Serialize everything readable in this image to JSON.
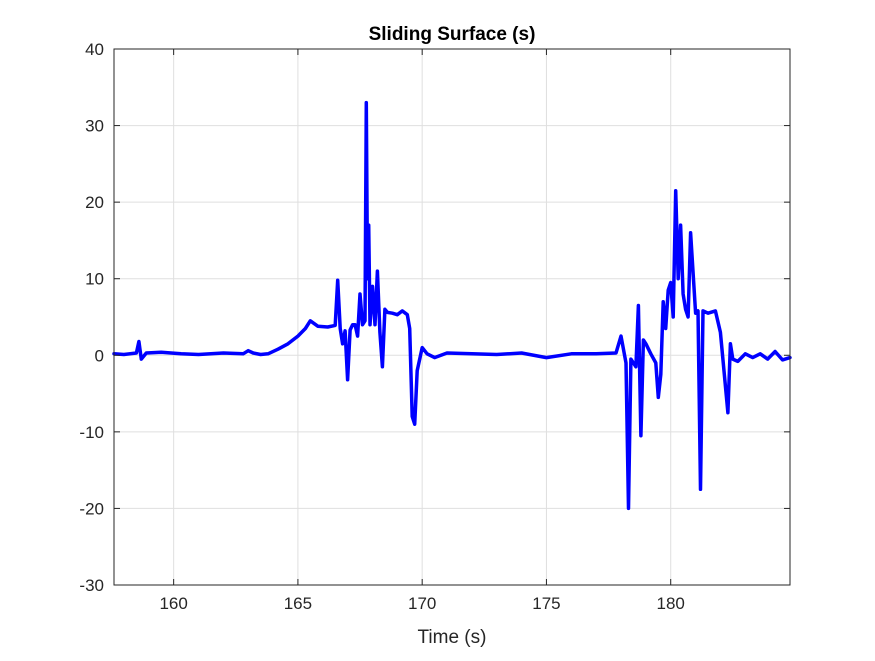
{
  "chart_data": {
    "type": "line",
    "title": "Sliding Surface (s)",
    "xlabel": "Time (s)",
    "ylabel": "",
    "xlim": [
      157.6,
      184.8
    ],
    "ylim": [
      -30,
      40
    ],
    "grid": true,
    "xticks": [
      160,
      165,
      170,
      175,
      180
    ],
    "yticks": [
      -30,
      -20,
      -10,
      0,
      10,
      20,
      30,
      40
    ],
    "colors": {
      "series": "#0000ff",
      "axis": "#262626",
      "grid": "#dfdfdf"
    },
    "series": [
      {
        "name": "",
        "x": [
          157.6,
          158.0,
          158.5,
          158.6,
          158.7,
          158.9,
          159.5,
          160.3,
          161.0,
          162.0,
          162.8,
          163.0,
          163.2,
          163.5,
          163.8,
          164.2,
          164.6,
          165.0,
          165.3,
          165.5,
          165.8,
          166.2,
          166.5,
          166.6,
          166.7,
          166.8,
          166.9,
          167.0,
          167.1,
          167.2,
          167.3,
          167.4,
          167.5,
          167.6,
          167.7,
          167.75,
          167.8,
          167.85,
          167.9,
          168.0,
          168.1,
          168.2,
          168.3,
          168.4,
          168.5,
          168.6,
          168.8,
          169.0,
          169.2,
          169.4,
          169.5,
          169.6,
          169.7,
          169.8,
          169.9,
          170.0,
          170.2,
          170.5,
          171.0,
          172.0,
          173.0,
          174.0,
          175.0,
          176.0,
          177.0,
          177.8,
          178.0,
          178.2,
          178.3,
          178.4,
          178.6,
          178.7,
          178.8,
          178.9,
          179.0,
          179.2,
          179.4,
          179.5,
          179.6,
          179.7,
          179.8,
          179.9,
          180.0,
          180.1,
          180.2,
          180.3,
          180.4,
          180.5,
          180.6,
          180.7,
          180.8,
          181.0,
          181.1,
          181.2,
          181.3,
          181.5,
          181.8,
          182.0,
          182.2,
          182.3,
          182.4,
          182.5,
          182.7,
          183.0,
          183.3,
          183.6,
          183.9,
          184.2,
          184.5,
          184.8
        ],
        "y": [
          0.2,
          0.1,
          0.3,
          1.8,
          -0.5,
          0.3,
          0.4,
          0.2,
          0.1,
          0.3,
          0.2,
          0.6,
          0.3,
          0.1,
          0.2,
          0.8,
          1.5,
          2.5,
          3.5,
          4.5,
          3.8,
          3.7,
          3.9,
          9.8,
          3.5,
          1.5,
          3.2,
          -3.2,
          3.3,
          4.0,
          4.0,
          2.5,
          8.0,
          4.0,
          4.5,
          33.0,
          10.0,
          17.0,
          4.0,
          9.0,
          4.0,
          11.0,
          3.0,
          -1.5,
          6.0,
          5.6,
          5.5,
          5.3,
          5.8,
          5.3,
          3.5,
          -8.0,
          -9.0,
          -2.0,
          -0.5,
          1.0,
          0.2,
          -0.3,
          0.3,
          0.2,
          0.1,
          0.3,
          -0.3,
          0.2,
          0.2,
          0.3,
          2.5,
          -1.0,
          -20.0,
          -0.5,
          -1.5,
          6.5,
          -10.5,
          2.0,
          1.5,
          0.2,
          -1.0,
          -5.5,
          -2.5,
          7.0,
          3.5,
          8.5,
          9.5,
          5.0,
          21.5,
          10.0,
          17.0,
          8.0,
          6.0,
          5.0,
          16.0,
          5.5,
          5.8,
          -17.5,
          5.8,
          5.5,
          5.8,
          3.0,
          -4.0,
          -7.5,
          1.5,
          -0.5,
          -0.8,
          0.2,
          -0.3,
          0.2,
          -0.5,
          0.5,
          -0.6,
          -0.3
        ]
      }
    ]
  }
}
